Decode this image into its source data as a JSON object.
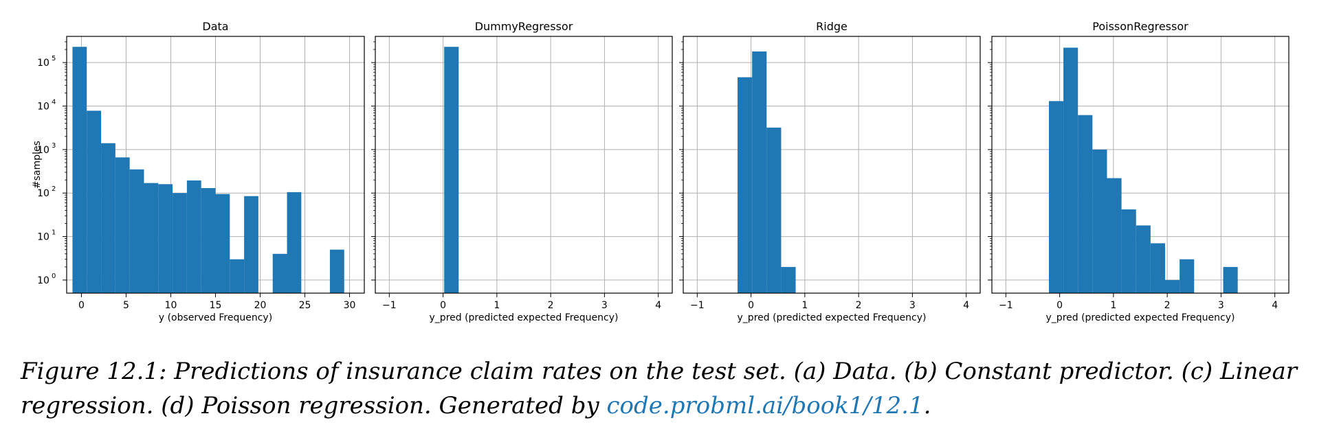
{
  "chart_data": [
    {
      "type": "bar",
      "title": "Data",
      "xlabel": "y (observed Frequency)",
      "ylabel": "#samples",
      "yscale": "log",
      "ylim": [
        0.5,
        400000
      ],
      "xlim": [
        -1.65,
        31.65
      ],
      "xticks": [
        0,
        5,
        10,
        15,
        20,
        25,
        30
      ],
      "grid": true,
      "color": "#1f77b4",
      "bin_width": 1.6,
      "bins_left": [
        -1.0,
        0.6,
        2.2,
        3.8,
        5.4,
        7.0,
        8.6,
        10.2,
        11.8,
        13.4,
        15.0,
        16.6,
        18.2,
        19.8,
        21.4,
        23.0,
        24.6,
        26.2,
        27.8,
        29.4
      ],
      "values": [
        230000,
        7800,
        1400,
        660,
        350,
        170,
        160,
        100,
        195,
        130,
        95,
        3,
        85,
        0,
        4,
        105,
        0,
        0,
        5,
        0
      ]
    },
    {
      "type": "bar",
      "title": "DummyRegressor",
      "xlabel": "y_pred (predicted expected Frequency)",
      "yscale": "log",
      "ylim": [
        0.5,
        400000
      ],
      "xlim": [
        -1.26,
        4.26
      ],
      "xticks": [
        -1,
        0,
        1,
        2,
        3,
        4
      ],
      "grid": true,
      "color": "#1f77b4",
      "bin_width": 0.27,
      "bins_left": [
        0.02
      ],
      "values": [
        230000
      ]
    },
    {
      "type": "bar",
      "title": "Ridge",
      "xlabel": "y_pred (predicted expected Frequency)",
      "yscale": "log",
      "ylim": [
        0.5,
        400000
      ],
      "xlim": [
        -1.26,
        4.26
      ],
      "xticks": [
        -1,
        0,
        1,
        2,
        3,
        4
      ],
      "grid": true,
      "color": "#1f77b4",
      "bin_width": 0.27,
      "bins_left": [
        -0.25,
        0.02,
        0.29,
        0.56
      ],
      "values": [
        46000,
        180000,
        3200,
        2
      ]
    },
    {
      "type": "bar",
      "title": "PoissonRegressor",
      "xlabel": "y_pred (predicted expected Frequency)",
      "yscale": "log",
      "ylim": [
        0.5,
        400000
      ],
      "xlim": [
        -1.26,
        4.26
      ],
      "xticks": [
        -1,
        0,
        1,
        2,
        3,
        4
      ],
      "grid": true,
      "color": "#1f77b4",
      "bin_width": 0.27,
      "bins_left": [
        -0.2,
        0.07,
        0.34,
        0.61,
        0.88,
        1.15,
        1.42,
        1.69,
        1.96,
        2.23,
        2.5,
        2.77,
        3.04
      ],
      "values": [
        13000,
        220000,
        6200,
        1000,
        220,
        42,
        18,
        7,
        1,
        3,
        0,
        0,
        2
      ]
    }
  ],
  "caption": {
    "text": "Figure 12.1: Predictions of insurance claim rates on the test set. (a) Data. (b) Constant predictor. (c) Linear regression. (d) Poisson regression. Generated by ",
    "link": "code.probml.ai/book1/12.1",
    "end": "."
  }
}
